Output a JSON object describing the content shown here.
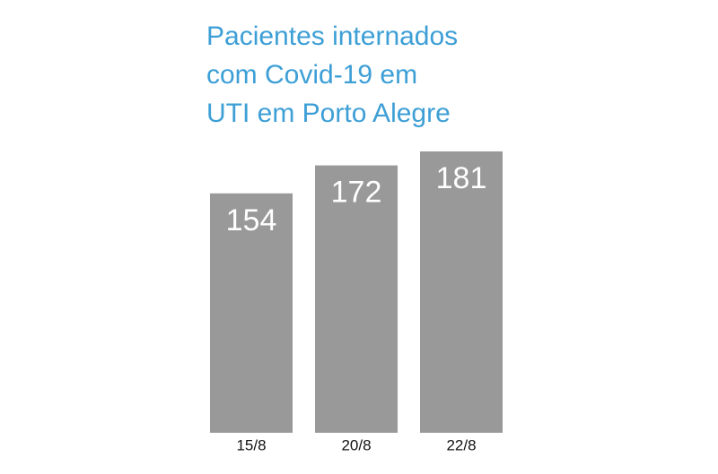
{
  "chart_data": {
    "type": "bar",
    "title": [
      "Pacientes internados",
      "com Covid-19 em",
      "UTI em Porto Alegre"
    ],
    "title_color": "#3d9fd6",
    "categories": [
      "15/8",
      "20/8",
      "22/8"
    ],
    "values": [
      154,
      172,
      181
    ],
    "color": "#999999",
    "ylim": [
      0,
      200
    ]
  }
}
